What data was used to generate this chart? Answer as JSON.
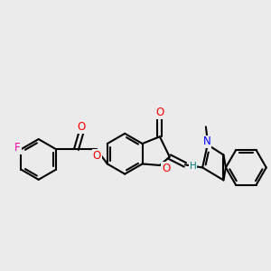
{
  "bg_color": "#ebebeb",
  "bond_color": "#000000",
  "bond_width": 1.5,
  "atom_colors": {
    "O": "#ff0000",
    "N": "#0000ff",
    "F": "#ff00aa",
    "H": "#008080",
    "C": "#000000"
  },
  "font_size": 8.5
}
